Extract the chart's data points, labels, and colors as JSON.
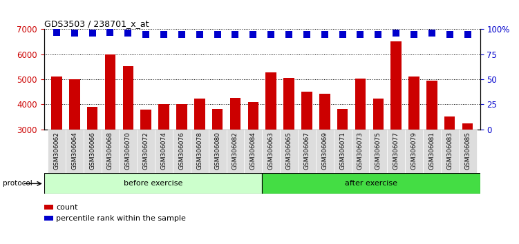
{
  "title": "GDS3503 / 238701_x_at",
  "categories": [
    "GSM306062",
    "GSM306064",
    "GSM306066",
    "GSM306068",
    "GSM306070",
    "GSM306072",
    "GSM306074",
    "GSM306076",
    "GSM306078",
    "GSM306080",
    "GSM306082",
    "GSM306084",
    "GSM306063",
    "GSM306065",
    "GSM306067",
    "GSM306069",
    "GSM306071",
    "GSM306073",
    "GSM306075",
    "GSM306077",
    "GSM306079",
    "GSM306081",
    "GSM306083",
    "GSM306085"
  ],
  "counts": [
    5120,
    5000,
    3900,
    5980,
    5520,
    3780,
    4020,
    4000,
    4230,
    3830,
    4260,
    4100,
    5270,
    5060,
    4510,
    4430,
    3830,
    5020,
    4230,
    6530,
    5100,
    4960,
    3510,
    3230
  ],
  "percentiles": [
    97,
    96,
    96,
    97,
    96,
    95,
    95,
    95,
    95,
    95,
    95,
    95,
    95,
    95,
    95,
    95,
    95,
    95,
    95,
    96,
    95,
    96,
    95,
    95
  ],
  "before_count": 12,
  "after_count": 12,
  "ylim_left": [
    3000,
    7000
  ],
  "ylim_right": [
    0,
    100
  ],
  "yticks_left": [
    3000,
    4000,
    5000,
    6000,
    7000
  ],
  "yticks_right": [
    0,
    25,
    50,
    75,
    100
  ],
  "bar_color": "#cc0000",
  "dot_color": "#0000cc",
  "before_color_light": "#ccffcc",
  "after_color": "#44dd44",
  "bg_color": "#ffffff",
  "tick_bg_color": "#dddddd",
  "protocol_label": "protocol",
  "before_label": "before exercise",
  "after_label": "after exercise",
  "legend_count": "count",
  "legend_pct": "percentile rank within the sample"
}
